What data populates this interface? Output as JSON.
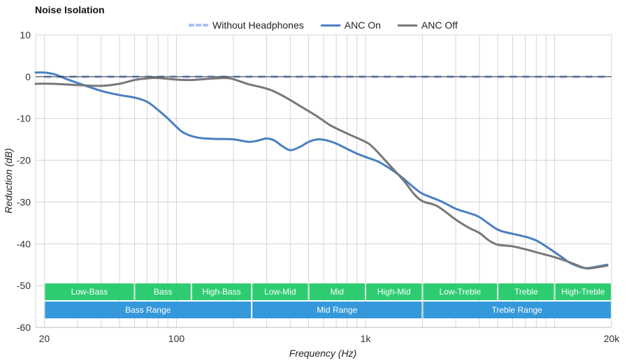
{
  "chart_data": {
    "type": "line",
    "title": "Noise Isolation",
    "xlabel": "Frequency (Hz)",
    "ylabel": "Reduction (dB)",
    "xscale": "log",
    "xlim": [
      18,
      20000
    ],
    "ylim": [
      -60,
      10
    ],
    "yticks": [
      10,
      0,
      -10,
      -20,
      -30,
      -40,
      -50,
      -60
    ],
    "xticks": [
      {
        "value": 20,
        "label": "20"
      },
      {
        "value": 100,
        "label": "100"
      },
      {
        "value": 1000,
        "label": "1k"
      },
      {
        "value": 20000,
        "label": "20k"
      }
    ],
    "grid": true,
    "legend_position": "top-center",
    "series": [
      {
        "name": "Without Headphones",
        "color": "#a9c1f5",
        "dash": true,
        "points": [
          [
            20,
            0
          ],
          [
            50,
            0
          ],
          [
            100,
            0
          ],
          [
            500,
            0
          ],
          [
            1000,
            0
          ],
          [
            5000,
            0
          ],
          [
            10000,
            0
          ],
          [
            19000,
            0
          ]
        ]
      },
      {
        "name": "ANC On",
        "color": "#4a7fc1",
        "dash": false,
        "points": [
          [
            18,
            1
          ],
          [
            20,
            1
          ],
          [
            23,
            0.5
          ],
          [
            26,
            -0.5
          ],
          [
            30,
            -1.5
          ],
          [
            40,
            -3.4
          ],
          [
            50,
            -4.4
          ],
          [
            60,
            -5
          ],
          [
            70,
            -6
          ],
          [
            80,
            -8
          ],
          [
            90,
            -10
          ],
          [
            100,
            -12
          ],
          [
            110,
            -13.5
          ],
          [
            130,
            -14.6
          ],
          [
            160,
            -14.9
          ],
          [
            200,
            -15
          ],
          [
            240,
            -15.6
          ],
          [
            270,
            -15.3
          ],
          [
            300,
            -14.8
          ],
          [
            330,
            -15.3
          ],
          [
            360,
            -16.5
          ],
          [
            400,
            -17.6
          ],
          [
            450,
            -16.8
          ],
          [
            500,
            -15.6
          ],
          [
            560,
            -15
          ],
          [
            630,
            -15.3
          ],
          [
            700,
            -16
          ],
          [
            800,
            -17.3
          ],
          [
            900,
            -18.4
          ],
          [
            1000,
            -19.2
          ],
          [
            1200,
            -20.6
          ],
          [
            1500,
            -23.5
          ],
          [
            1800,
            -26.5
          ],
          [
            2000,
            -28
          ],
          [
            2500,
            -29.8
          ],
          [
            3000,
            -31.6
          ],
          [
            3500,
            -32.6
          ],
          [
            4000,
            -33.6
          ],
          [
            5000,
            -36.6
          ],
          [
            6000,
            -37.6
          ],
          [
            7000,
            -38.3
          ],
          [
            8000,
            -39.2
          ],
          [
            9000,
            -40.6
          ],
          [
            10000,
            -42
          ],
          [
            11000,
            -43.3
          ],
          [
            12000,
            -44.5
          ],
          [
            13000,
            -45.2
          ],
          [
            14000,
            -45.7
          ],
          [
            15000,
            -45.8
          ],
          [
            17000,
            -45.4
          ],
          [
            19000,
            -45
          ]
        ]
      },
      {
        "name": "ANC Off",
        "color": "#777777",
        "dash": false,
        "points": [
          [
            18,
            -1.7
          ],
          [
            22,
            -1.7
          ],
          [
            30,
            -2
          ],
          [
            40,
            -2.2
          ],
          [
            50,
            -1.7
          ],
          [
            60,
            -0.8
          ],
          [
            70,
            -0.4
          ],
          [
            80,
            -0.3
          ],
          [
            100,
            -0.7
          ],
          [
            120,
            -0.8
          ],
          [
            150,
            -0.5
          ],
          [
            180,
            -0.3
          ],
          [
            200,
            -0.6
          ],
          [
            240,
            -1.8
          ],
          [
            280,
            -2.5
          ],
          [
            320,
            -3.3
          ],
          [
            380,
            -5
          ],
          [
            450,
            -7
          ],
          [
            550,
            -9.4
          ],
          [
            650,
            -11.6
          ],
          [
            800,
            -13.6
          ],
          [
            1000,
            -15.6
          ],
          [
            1100,
            -17
          ],
          [
            1300,
            -20.5
          ],
          [
            1600,
            -25
          ],
          [
            1800,
            -28
          ],
          [
            2000,
            -29.8
          ],
          [
            2400,
            -31
          ],
          [
            3000,
            -34.2
          ],
          [
            3500,
            -36.1
          ],
          [
            4000,
            -37.4
          ],
          [
            4500,
            -39.2
          ],
          [
            5000,
            -40.2
          ],
          [
            6000,
            -40.6
          ],
          [
            7000,
            -41.3
          ],
          [
            8000,
            -42
          ],
          [
            10000,
            -43.2
          ],
          [
            12000,
            -44.4
          ],
          [
            14000,
            -45.6
          ],
          [
            15000,
            -45.9
          ],
          [
            17000,
            -45.6
          ],
          [
            19000,
            -45.2
          ]
        ]
      }
    ],
    "bands": [
      {
        "row": 1,
        "label": "Low-Bass",
        "from": 20,
        "to": 60,
        "color": "#2ecc71"
      },
      {
        "row": 1,
        "label": "Bass",
        "from": 60,
        "to": 120,
        "color": "#2ecc71"
      },
      {
        "row": 1,
        "label": "High-Bass",
        "from": 120,
        "to": 250,
        "color": "#2ecc71"
      },
      {
        "row": 1,
        "label": "Low-Mid",
        "from": 250,
        "to": 500,
        "color": "#2ecc71"
      },
      {
        "row": 1,
        "label": "Mid",
        "from": 500,
        "to": 1000,
        "color": "#2ecc71"
      },
      {
        "row": 1,
        "label": "High-Mid",
        "from": 1000,
        "to": 2000,
        "color": "#2ecc71"
      },
      {
        "row": 1,
        "label": "Low-Treble",
        "from": 2000,
        "to": 5000,
        "color": "#2ecc71"
      },
      {
        "row": 1,
        "label": "Treble",
        "from": 5000,
        "to": 10000,
        "color": "#2ecc71"
      },
      {
        "row": 1,
        "label": "High-Treble",
        "from": 10000,
        "to": 20000,
        "color": "#2ecc71"
      },
      {
        "row": 2,
        "label": "Bass Range",
        "from": 20,
        "to": 250,
        "color": "#3498db"
      },
      {
        "row": 2,
        "label": "Mid Range",
        "from": 250,
        "to": 2000,
        "color": "#3498db"
      },
      {
        "row": 2,
        "label": "Treble Range",
        "from": 2000,
        "to": 20000,
        "color": "#3498db"
      }
    ]
  }
}
